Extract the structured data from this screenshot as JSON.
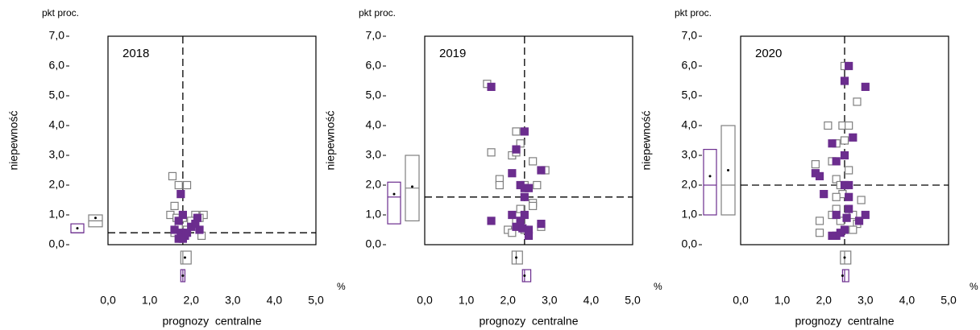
{
  "chart_data": [
    {
      "type": "scatter",
      "title": "2018",
      "y_label": "niepewność",
      "y_unit": "pkt proc.",
      "x_label": "prognozy  centralne",
      "x_unit": "%",
      "xlim": [
        0,
        5
      ],
      "ylim": [
        0,
        7
      ],
      "xticks": [
        {
          "value": 0,
          "label": "0,0"
        },
        {
          "value": 1,
          "label": "1,0"
        },
        {
          "value": 2,
          "label": "2,0"
        },
        {
          "value": 3,
          "label": "3,0"
        },
        {
          "value": 4,
          "label": "4,0"
        },
        {
          "value": 5,
          "label": "5,0"
        }
      ],
      "yticks": [
        {
          "value": 0,
          "label": "0,0"
        },
        {
          "value": 1,
          "label": "1,0"
        },
        {
          "value": 2,
          "label": "2,0"
        },
        {
          "value": 3,
          "label": "3,0"
        },
        {
          "value": 4,
          "label": "4,0"
        },
        {
          "value": 5,
          "label": "5,0"
        },
        {
          "value": 6,
          "label": "6,0"
        },
        {
          "value": 7,
          "label": "7,0"
        }
      ],
      "median_x": 1.8,
      "median_y": 0.4,
      "series": [
        {
          "color": "#6b2d8e",
          "filled": true,
          "x": [
            1.75,
            1.8,
            1.7,
            1.6,
            1.75,
            1.85,
            1.7,
            1.8,
            2.0,
            2.2,
            2.1,
            1.9,
            2.15
          ],
          "values": [
            1.7,
            1.0,
            0.8,
            0.5,
            0.4,
            0.3,
            0.2,
            0.2,
            0.6,
            0.5,
            0.7,
            0.4,
            0.9
          ],
          "box_y": {
            "q1": 0.4,
            "median": 0.4,
            "q3": 0.7,
            "mean": 0.55
          },
          "box_x": {
            "q1": 1.75,
            "median": 1.8,
            "q3": 1.85,
            "mean": 1.8
          }
        },
        {
          "color": "#7f7f7f",
          "filled": false,
          "x": [
            1.55,
            1.9,
            1.7,
            1.6,
            1.5,
            1.65,
            2.1,
            2.3,
            2.2,
            2.0,
            1.6,
            1.9,
            2.25,
            1.7,
            1.8
          ],
          "values": [
            2.3,
            2.0,
            2.0,
            1.3,
            1.0,
            0.9,
            1.0,
            1.0,
            0.9,
            0.8,
            0.4,
            0.5,
            0.3,
            0.6,
            0.9
          ],
          "box_y": {
            "q1": 0.6,
            "median": 0.8,
            "q3": 1.0,
            "mean": 0.9
          },
          "box_x": {
            "q1": 1.75,
            "median": 1.8,
            "q3": 2.0,
            "mean": 1.85
          }
        }
      ]
    },
    {
      "type": "scatter",
      "title": "2019",
      "y_label": "niepewność",
      "y_unit": "pkt proc.",
      "x_label": "prognozy  centralne",
      "x_unit": "%",
      "xlim": [
        0,
        5
      ],
      "ylim": [
        0,
        7
      ],
      "xticks": [
        {
          "value": 0,
          "label": "0,0"
        },
        {
          "value": 1,
          "label": "1,0"
        },
        {
          "value": 2,
          "label": "2,0"
        },
        {
          "value": 3,
          "label": "3,0"
        },
        {
          "value": 4,
          "label": "4,0"
        },
        {
          "value": 5,
          "label": "5,0"
        }
      ],
      "yticks": [
        {
          "value": 0,
          "label": "0,0"
        },
        {
          "value": 1,
          "label": "1,0"
        },
        {
          "value": 2,
          "label": "2,0"
        },
        {
          "value": 3,
          "label": "3,0"
        },
        {
          "value": 4,
          "label": "4,0"
        },
        {
          "value": 5,
          "label": "5,0"
        },
        {
          "value": 6,
          "label": "6,0"
        },
        {
          "value": 7,
          "label": "7,0"
        }
      ],
      "median_x": 2.4,
      "median_y": 1.6,
      "series": [
        {
          "color": "#6b2d8e",
          "filled": true,
          "x": [
            1.6,
            2.4,
            2.2,
            2.1,
            2.8,
            2.3,
            2.4,
            2.5,
            2.4,
            2.1,
            2.4,
            1.6,
            2.2,
            2.3,
            2.35,
            2.5,
            2.8,
            2.5
          ],
          "values": [
            5.3,
            3.8,
            3.2,
            2.4,
            2.5,
            2.0,
            1.9,
            1.9,
            1.6,
            1.0,
            1.0,
            0.8,
            0.6,
            0.8,
            0.55,
            0.5,
            0.7,
            0.3
          ],
          "box_y": {
            "q1": 0.7,
            "median": 1.6,
            "q3": 2.1,
            "mean": 1.7
          },
          "box_x": {
            "q1": 2.35,
            "median": 2.4,
            "q3": 2.55,
            "mean": 2.4
          }
        },
        {
          "color": "#7f7f7f",
          "filled": false,
          "x": [
            1.5,
            1.6,
            2.2,
            2.3,
            2.1,
            2.2,
            2.9,
            2.6,
            1.8,
            1.8,
            2.4,
            2.7,
            2.6,
            2.6,
            2.3,
            2.2,
            2.0,
            2.3,
            2.8,
            2.1,
            2.4
          ],
          "values": [
            5.4,
            3.1,
            3.8,
            3.4,
            3.0,
            3.1,
            2.5,
            2.8,
            2.2,
            2.0,
            2.0,
            2.0,
            1.4,
            1.3,
            1.2,
            0.8,
            0.5,
            0.7,
            0.6,
            0.4,
            0.5
          ],
          "box_y": {
            "q1": 0.8,
            "median": 1.9,
            "q3": 3.0,
            "mean": 1.95
          },
          "box_x": {
            "q1": 2.1,
            "median": 2.2,
            "q3": 2.35,
            "mean": 2.2
          }
        }
      ]
    },
    {
      "type": "scatter",
      "title": "2020",
      "y_label": "niepewność",
      "y_unit": "pkt proc.",
      "x_label": "prognozy  centralne",
      "x_unit": "%",
      "xlim": [
        0,
        5
      ],
      "ylim": [
        0,
        7
      ],
      "xticks": [
        {
          "value": 0,
          "label": "0,0"
        },
        {
          "value": 1,
          "label": "1,0"
        },
        {
          "value": 2,
          "label": "2,0"
        },
        {
          "value": 3,
          "label": "3,0"
        },
        {
          "value": 4,
          "label": "4,0"
        },
        {
          "value": 5,
          "label": "5,0"
        }
      ],
      "yticks": [
        {
          "value": 0,
          "label": "0,0"
        },
        {
          "value": 1,
          "label": "1,0"
        },
        {
          "value": 2,
          "label": "2,0"
        },
        {
          "value": 3,
          "label": "3,0"
        },
        {
          "value": 4,
          "label": "4,0"
        },
        {
          "value": 5,
          "label": "5,0"
        },
        {
          "value": 6,
          "label": "6,0"
        },
        {
          "value": 7,
          "label": "7,0"
        }
      ],
      "median_x": 2.5,
      "median_y": 2.0,
      "series": [
        {
          "color": "#6b2d8e",
          "filled": true,
          "x": [
            2.6,
            2.5,
            3.0,
            2.7,
            2.2,
            2.3,
            2.5,
            1.8,
            1.9,
            2.5,
            2.6,
            2.0,
            2.6,
            2.6,
            2.3,
            2.55,
            3.0,
            2.85,
            2.5,
            2.3,
            2.4,
            2.2
          ],
          "values": [
            6.0,
            5.5,
            5.3,
            3.6,
            3.4,
            2.8,
            3.0,
            2.4,
            2.3,
            2.0,
            2.0,
            1.7,
            1.6,
            1.2,
            1.0,
            0.9,
            1.0,
            0.8,
            0.5,
            0.3,
            0.4,
            0.3
          ],
          "box_y": {
            "q1": 1.0,
            "median": 2.0,
            "q3": 3.2,
            "mean": 2.3
          },
          "box_x": {
            "q1": 2.45,
            "median": 2.5,
            "q3": 2.6,
            "mean": 2.45
          }
        },
        {
          "color": "#7f7f7f",
          "filled": false,
          "x": [
            2.5,
            2.8,
            2.1,
            2.45,
            2.6,
            2.5,
            2.3,
            2.2,
            1.8,
            2.6,
            2.3,
            2.4,
            2.45,
            2.3,
            2.9,
            2.3,
            2.7,
            2.2,
            1.9,
            2.8,
            2.7,
            1.9,
            2.4
          ],
          "values": [
            6.0,
            4.8,
            4.0,
            4.0,
            4.0,
            3.5,
            3.4,
            2.8,
            2.7,
            2.5,
            2.2,
            2.0,
            1.7,
            1.6,
            1.5,
            1.2,
            1.0,
            1.0,
            0.8,
            0.7,
            0.5,
            0.4,
            0.8
          ],
          "box_y": {
            "q1": 1.0,
            "median": 2.0,
            "q3": 4.0,
            "mean": 2.5
          },
          "box_x": {
            "q1": 2.4,
            "median": 2.5,
            "q3": 2.65,
            "mean": 2.5
          }
        }
      ]
    }
  ]
}
